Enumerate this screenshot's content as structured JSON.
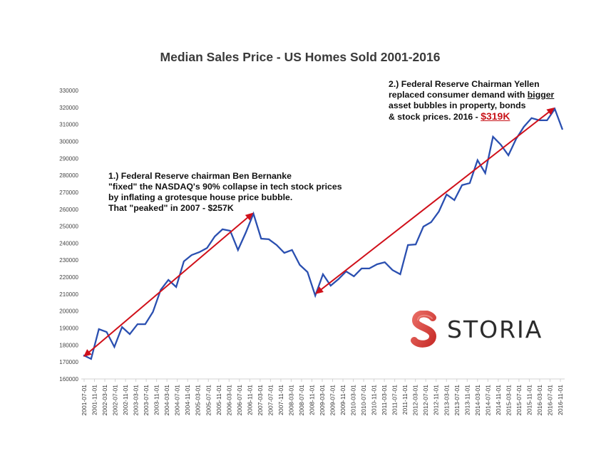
{
  "chart_data": {
    "type": "line",
    "title": "Median Sales Price - US Homes Sold  2001-2016",
    "xlabel": "",
    "ylabel": "",
    "ylim": [
      160000,
      330000
    ],
    "yticks": [
      160000,
      170000,
      180000,
      190000,
      200000,
      210000,
      220000,
      230000,
      240000,
      250000,
      260000,
      270000,
      280000,
      290000,
      300000,
      310000,
      320000,
      330000
    ],
    "xtick_labels": [
      "2001-07-01",
      "2001-11-01",
      "2002-03-01",
      "2002-07-01",
      "2002-11-01",
      "2003-03-01",
      "2003-07-01",
      "2003-11-01",
      "2004-03-01",
      "2004-07-01",
      "2004-11-01",
      "2005-03-01",
      "2005-07-01",
      "2005-11-01",
      "2006-03-01",
      "2006-07-01",
      "2006-11-01",
      "2007-03-01",
      "2007-07-01",
      "2007-11-01",
      "2008-03-01",
      "2008-07-01",
      "2008-11-01",
      "2009-03-01",
      "2009-07-01",
      "2009-11-01",
      "2010-03-01",
      "2010-07-01",
      "2010-11-01",
      "2011-03-01",
      "2011-07-01",
      "2011-11-01",
      "2012-03-01",
      "2012-07-01",
      "2012-11-01",
      "2013-03-01",
      "2013-07-01",
      "2013-11-01",
      "2014-03-01",
      "2014-07-01",
      "2014-11-01",
      "2015-03-01",
      "2015-07-01",
      "2015-11-01",
      "2016-03-01",
      "2016-07-01",
      "2016-11-01"
    ],
    "grid": false,
    "legend": "none",
    "series": [
      {
        "name": "Median Sales Price",
        "color": "#2a4fb0",
        "values": [
          174000,
          171800,
          189400,
          187700,
          178900,
          190600,
          186400,
          192300,
          192300,
          199500,
          212500,
          218400,
          214200,
          229300,
          233000,
          234700,
          237200,
          244000,
          248200,
          247300,
          236000,
          246100,
          257400,
          242700,
          242300,
          238900,
          234300,
          236000,
          227200,
          223000,
          209100,
          221700,
          215000,
          218800,
          223400,
          220500,
          225100,
          225100,
          227600,
          228800,
          224200,
          221700,
          238900,
          239300,
          249800,
          252400,
          258700,
          268700,
          265400,
          274200,
          275400,
          288900,
          281300,
          302700,
          298100,
          291800,
          301500,
          308600,
          313700,
          312400,
          312400,
          319100,
          306900
        ]
      }
    ],
    "annotations": [
      {
        "id": "bernanke",
        "lines": [
          "1.) Federal Reserve chairman Ben Bernanke",
          "\"fixed\" the NASDAQ's 90% collapse in tech stock prices",
          "by inflating a grotesque house price bubble.",
          "That \"peaked\" in 2007 - $257K"
        ]
      },
      {
        "id": "yellen",
        "line1": "2.) Federal Reserve Chairman Yellen",
        "line2_pre": "replaced consumer demand with ",
        "line2_u": "bigger",
        "line3": "asset bubbles in property, bonds",
        "line4_pre": "& stock prices. 2016 - ",
        "line4_price": "$319K"
      }
    ],
    "arrows": [
      {
        "name": "bernanke-bubble-arrow",
        "from": {
          "index": 0,
          "value": 173000
        },
        "to": {
          "index": 22,
          "value": 258000
        },
        "color": "#d0101a"
      },
      {
        "name": "yellen-bubble-arrow",
        "from": {
          "index": 30,
          "value": 210000
        },
        "to": {
          "index": 61,
          "value": 320000
        },
        "color": "#d0101a"
      }
    ]
  },
  "logo": {
    "text": "STORIA",
    "color": "#e04a46"
  }
}
